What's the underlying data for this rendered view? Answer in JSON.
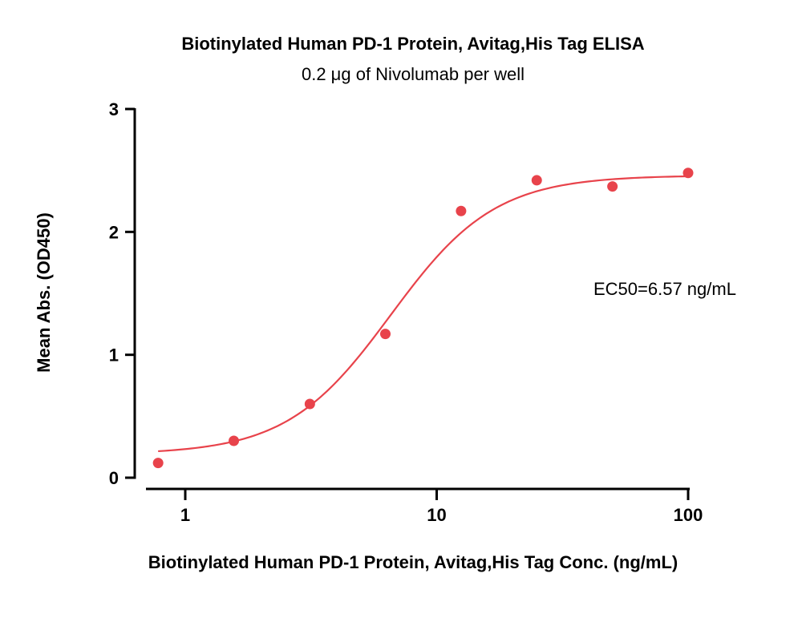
{
  "chart_data": {
    "type": "scatter",
    "title": "Biotinylated Human PD-1 Protein, Avitag,His Tag ELISA",
    "subtitle": "0.2 μg of Nivolumab per well",
    "xlabel": "Biotinylated Human PD-1 Protein, Avitag,His Tag Conc. (ng/mL)",
    "ylabel": "Mean Abs. (OD450)",
    "xscale": "log",
    "xlim": [
      0.6,
      120
    ],
    "ylim": [
      0,
      3
    ],
    "xticks": [
      1,
      10,
      100
    ],
    "xtick_labels": [
      "1",
      "10",
      "100"
    ],
    "yticks": [
      0,
      1,
      2,
      3
    ],
    "ytick_labels": [
      "0",
      "1",
      "2",
      "3"
    ],
    "grid": false,
    "legend": "none",
    "color": "#e8434b",
    "series": [
      {
        "x": [
          0.78,
          1.56,
          3.13,
          6.25,
          12.5,
          25,
          50,
          100
        ],
        "y": [
          0.12,
          0.3,
          0.6,
          1.17,
          2.17,
          2.42,
          2.37,
          2.48
        ]
      }
    ],
    "fit": {
      "model": "4PL",
      "bottom": 0.19,
      "top": 2.46,
      "ec50": 6.57,
      "hill": 2.1,
      "x_range": [
        0.78,
        100
      ]
    },
    "annotations": [
      {
        "text": "EC50=6.57 ng/mL"
      }
    ]
  }
}
